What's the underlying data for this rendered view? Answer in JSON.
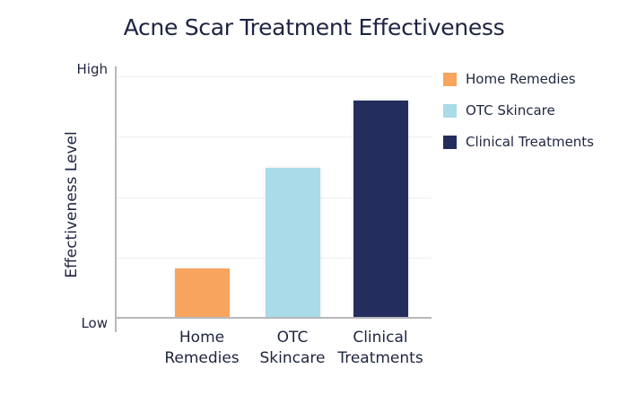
{
  "chart_data": {
    "type": "bar",
    "title": "Acne Scar Treatment Effectiveness",
    "xlabel": "",
    "ylabel": "Effectiveness Level",
    "y_tick_labels": [
      "Low",
      "High"
    ],
    "ylim": [
      0,
      1
    ],
    "grid": true,
    "legend_position": "right",
    "categories": [
      "Home Remedies",
      "OTC Skincare",
      "Clinical Treatments"
    ],
    "category_labels_wrapped": [
      [
        "Home",
        "Remedies"
      ],
      [
        "OTC",
        "Skincare"
      ],
      [
        "Clinical",
        "Treatments"
      ]
    ],
    "values": [
      0.2,
      0.62,
      0.9
    ],
    "colors": [
      "#f7a55e",
      "#a9dbe8",
      "#232d5e"
    ],
    "legend": [
      "Home Remedies",
      "OTC Skincare",
      "Clinical Treatments"
    ]
  }
}
